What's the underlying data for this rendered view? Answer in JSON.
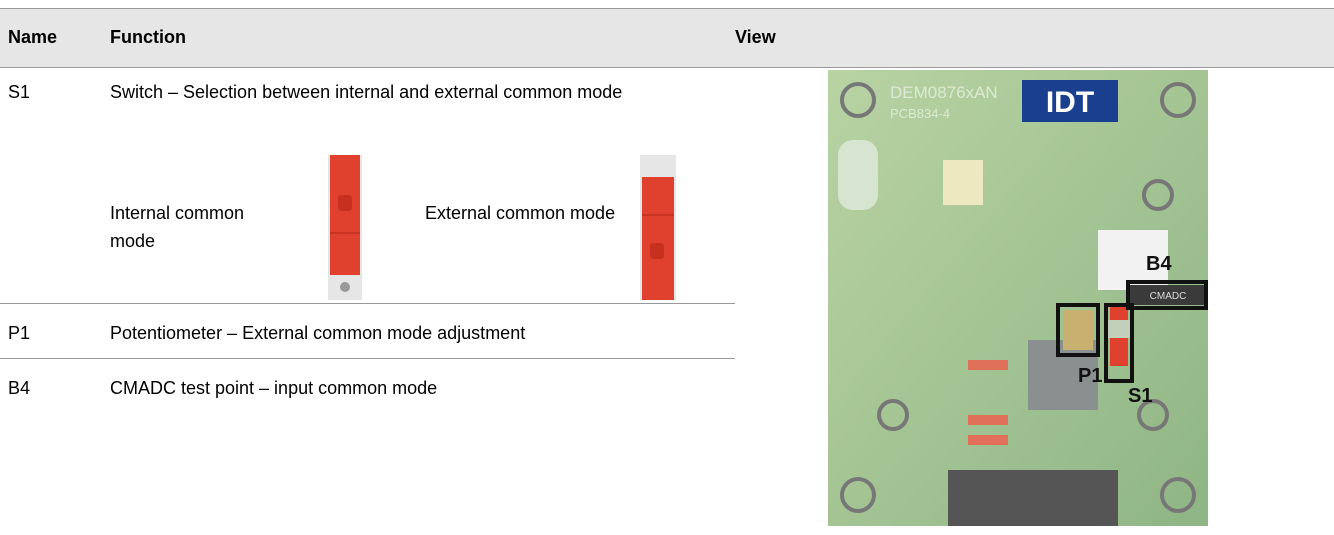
{
  "header": {
    "columns": [
      "Name",
      "Function",
      "View"
    ]
  },
  "rows": [
    {
      "name": "S1",
      "function": "Switch – Selection between internal and external common mode",
      "options": [
        {
          "label": "Internal common mode"
        },
        {
          "label": "External common mode"
        }
      ]
    },
    {
      "name": "P1",
      "function": "Potentiometer – External common mode adjustment"
    },
    {
      "name": "B4",
      "function": "CMADC test point – input common mode"
    }
  ],
  "view": {
    "board_label": "DEM0876xAN",
    "pcb_label": "PCB834-4",
    "logo": "IDT",
    "silkscreen": "CMADC",
    "callouts": [
      "B4",
      "P1",
      "S1"
    ]
  }
}
